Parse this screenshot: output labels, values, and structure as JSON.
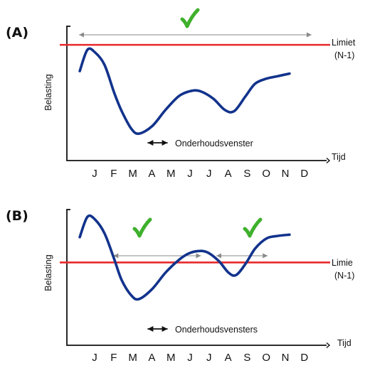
{
  "chart_data": [
    {
      "type": "line",
      "panel_label": "(A)",
      "ylabel": "Belasting",
      "xlabel": "Tijd",
      "limit_label": "Limiet",
      "limit_sublabel": "(N-1)",
      "maintenance_label": "Onderhoudsvenster",
      "categories": [
        "J",
        "F",
        "M",
        "A",
        "M",
        "J",
        "J",
        "A",
        "S",
        "O",
        "N",
        "D"
      ],
      "ylim": [
        0,
        100
      ],
      "limit_value": 88,
      "series": [
        {
          "x": [
            0.6,
            1.0,
            1.4,
            1.9,
            2.4,
            2.8,
            3.3,
            3.7,
            4.4,
            5.1,
            5.8,
            6.4,
            6.9,
            7.6,
            8.2,
            8.7,
            9.3,
            9.8,
            10.4,
            11.0,
            11.6
          ],
          "y": [
            67,
            84,
            82,
            72,
            50,
            35,
            21,
            17,
            23,
            36,
            47,
            51,
            51,
            45,
            36,
            35,
            47,
            57,
            61,
            63,
            65
          ]
        }
      ],
      "annotations": [
        {
          "type": "check",
          "label": "✓"
        },
        {
          "type": "double-arrow-span",
          "from": 0.6,
          "to": 11.6
        },
        {
          "type": "double-arrow-span",
          "from": 3.0,
          "to": 4.5
        }
      ],
      "grid": false,
      "legend": "none"
    },
    {
      "type": "line",
      "panel_label": "(B)",
      "ylabel": "Belasting",
      "xlabel": "Tijd",
      "limit_label": "Limie",
      "limit_sublabel": "(N-1)",
      "maintenance_label": "Onderhoudsvensters",
      "categories": [
        "J",
        "F",
        "M",
        "A",
        "M",
        "J",
        "J",
        "A",
        "S",
        "O",
        "N",
        "D"
      ],
      "ylim": [
        0,
        100
      ],
      "limit_value": 61,
      "series": [
        {
          "x": [
            0.6,
            1.0,
            1.4,
            1.9,
            2.4,
            2.8,
            3.3,
            3.7,
            4.4,
            5.1,
            5.8,
            6.3,
            6.8,
            7.3,
            7.9,
            8.4,
            8.8,
            9.3,
            9.8,
            10.4,
            11.0,
            11.6
          ],
          "y": [
            81,
            97,
            95,
            84,
            64,
            47,
            35,
            32,
            40,
            53,
            63,
            68,
            70,
            69,
            62,
            53,
            51,
            60,
            72,
            80,
            82,
            83
          ]
        }
      ],
      "annotations": [
        {
          "type": "check",
          "label": "✓"
        },
        {
          "type": "check",
          "label": "✓"
        },
        {
          "type": "double-arrow-span",
          "from": 2.4,
          "to": 5.8
        },
        {
          "type": "double-arrow-span",
          "from": 7.8,
          "to": 9.3
        },
        {
          "type": "double-arrow-span",
          "from": 3.0,
          "to": 4.5
        }
      ],
      "grid": false,
      "legend": "none"
    }
  ],
  "colors": {
    "limit": "#e8282b",
    "series": "#12338c",
    "check": "#3fb02c",
    "span_arrow": "#8a8a8a",
    "axis": "#111111"
  }
}
